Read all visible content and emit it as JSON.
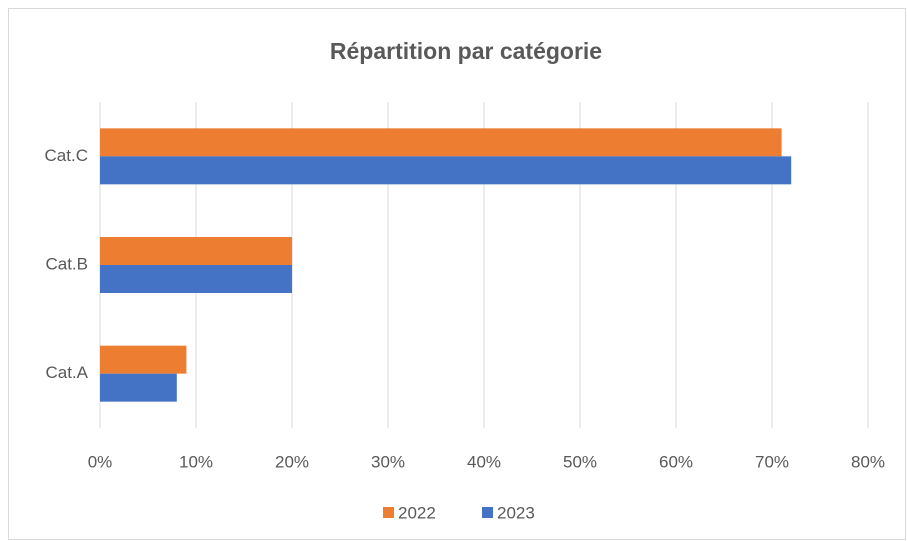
{
  "chart_data": {
    "type": "barh",
    "title": "Répartition par catégorie",
    "categories": [
      "Cat.A",
      "Cat.B",
      "Cat.C"
    ],
    "series": [
      {
        "name": "2022",
        "color": "#ed7d31",
        "values": [
          9,
          20,
          71
        ]
      },
      {
        "name": "2023",
        "color": "#4472c4",
        "values": [
          8,
          20,
          72
        ]
      }
    ],
    "xlim": [
      0,
      80
    ],
    "xticks": [
      {
        "value": 0,
        "label": "0%"
      },
      {
        "value": 10,
        "label": "10%"
      },
      {
        "value": 20,
        "label": "20%"
      },
      {
        "value": 30,
        "label": "30%"
      },
      {
        "value": 40,
        "label": "40%"
      },
      {
        "value": 50,
        "label": "50%"
      },
      {
        "value": 60,
        "label": "60%"
      },
      {
        "value": 70,
        "label": "70%"
      },
      {
        "value": 80,
        "label": "80%"
      }
    ],
    "grid": true,
    "legend": "bottom"
  }
}
